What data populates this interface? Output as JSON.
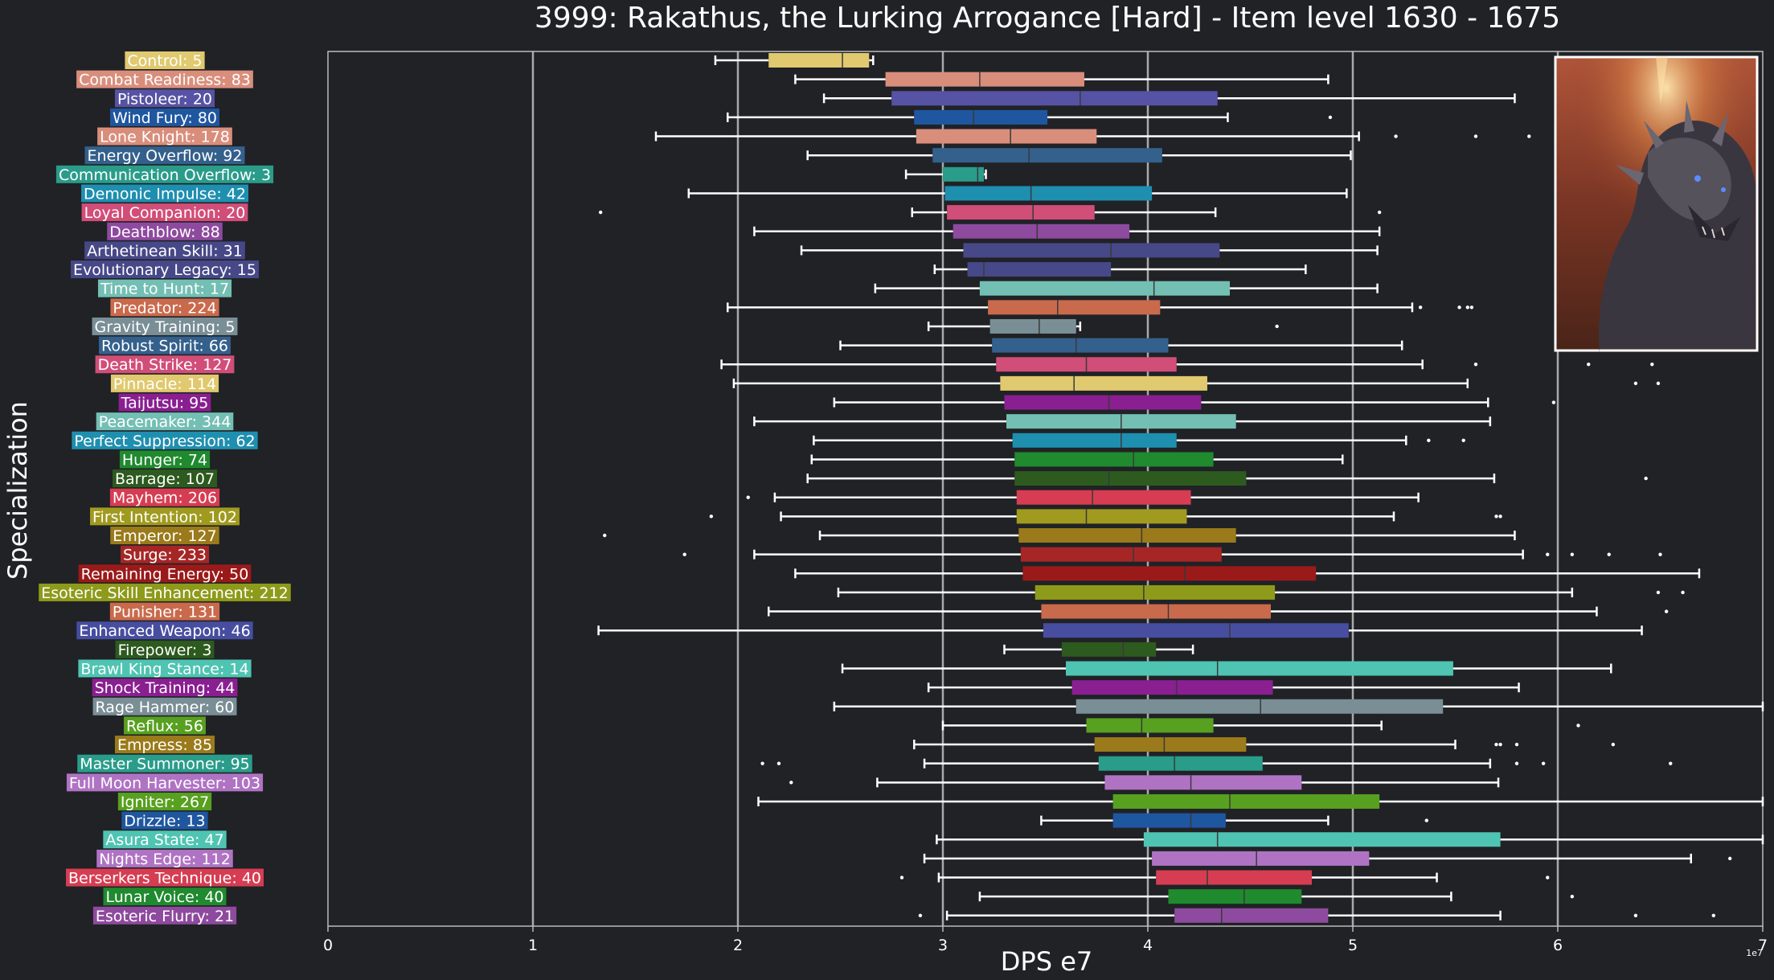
{
  "chart_data": {
    "type": "boxplot",
    "title": "3999: Rakathus, the Lurking Arrogance [Hard] - Item level 1630 - 1675",
    "xlabel": "DPS e7",
    "ylabel": "Specialization",
    "x_scale_note": "1e7",
    "xlim": [
      0,
      7
    ],
    "xticks": [
      "0",
      "1",
      "2",
      "3",
      "4",
      "5",
      "6",
      "7"
    ],
    "grid": "vertical lines at 1-6",
    "legend": "none",
    "inset_image": "dragon portrait, top-right",
    "categories": [
      {
        "label": "Control: 5",
        "color": "#e0c96e",
        "whisker_low": 1.89,
        "q1": 2.15,
        "median": 2.51,
        "q3": 2.64,
        "whisker_high": 2.66,
        "outliers": []
      },
      {
        "label": "Combat Readiness: 83",
        "color": "#d98e7c",
        "whisker_low": 2.28,
        "q1": 2.72,
        "median": 3.18,
        "q3": 3.69,
        "whisker_high": 4.88,
        "outliers": []
      },
      {
        "label": "Pistoleer: 20",
        "color": "#5652a4",
        "whisker_low": 2.42,
        "q1": 2.75,
        "median": 3.67,
        "q3": 4.34,
        "whisker_high": 5.79,
        "outliers": []
      },
      {
        "label": "Wind Fury: 80",
        "color": "#1f56a0",
        "whisker_low": 1.95,
        "q1": 2.86,
        "median": 3.15,
        "q3": 3.51,
        "whisker_high": 4.39,
        "outliers": [
          4.89
        ]
      },
      {
        "label": "Lone Knight: 178",
        "color": "#d98e7c",
        "whisker_low": 1.6,
        "q1": 2.87,
        "median": 3.33,
        "q3": 3.75,
        "whisker_high": 5.03,
        "outliers": [
          5.21,
          5.6,
          5.86
        ]
      },
      {
        "label": "Energy Overflow: 92",
        "color": "#34608c",
        "whisker_low": 2.34,
        "q1": 2.95,
        "median": 3.42,
        "q3": 4.07,
        "whisker_high": 4.99,
        "outliers": []
      },
      {
        "label": "Communication Overflow: 3",
        "color": "#2a9c8a",
        "whisker_low": 2.82,
        "q1": 3.0,
        "median": 3.17,
        "q3": 3.2,
        "whisker_high": 3.21,
        "outliers": []
      },
      {
        "label": "Demonic Impulse: 42",
        "color": "#1f8fb0",
        "whisker_low": 1.76,
        "q1": 3.01,
        "median": 3.43,
        "q3": 4.02,
        "whisker_high": 4.97,
        "outliers": []
      },
      {
        "label": "Loyal Companion: 20",
        "color": "#d14e78",
        "whisker_low": 2.85,
        "q1": 3.02,
        "median": 3.44,
        "q3": 3.74,
        "whisker_high": 4.33,
        "outliers": [
          1.33,
          5.13
        ]
      },
      {
        "label": "Deathblow: 88",
        "color": "#8e4a9e",
        "whisker_low": 2.08,
        "q1": 3.05,
        "median": 3.46,
        "q3": 3.91,
        "whisker_high": 5.13,
        "outliers": []
      },
      {
        "label": "Arthetinean Skill: 31",
        "color": "#474888",
        "whisker_low": 2.31,
        "q1": 3.1,
        "median": 3.82,
        "q3": 4.35,
        "whisker_high": 5.12,
        "outliers": []
      },
      {
        "label": "Evolutionary Legacy: 15",
        "color": "#474888",
        "whisker_low": 2.96,
        "q1": 3.12,
        "median": 3.2,
        "q3": 3.82,
        "whisker_high": 4.77,
        "outliers": []
      },
      {
        "label": "Time to Hunt: 17",
        "color": "#74bfb4",
        "whisker_low": 2.67,
        "q1": 3.18,
        "median": 4.03,
        "q3": 4.4,
        "whisker_high": 5.12,
        "outliers": []
      },
      {
        "label": "Predator: 224",
        "color": "#c96a4c",
        "whisker_low": 1.95,
        "q1": 3.22,
        "median": 3.56,
        "q3": 4.06,
        "whisker_high": 5.29,
        "outliers": [
          5.33,
          5.52,
          5.56,
          5.58
        ]
      },
      {
        "label": "Gravity Training: 5",
        "color": "#7a8e96",
        "whisker_low": 2.93,
        "q1": 3.23,
        "median": 3.47,
        "q3": 3.65,
        "whisker_high": 3.67,
        "outliers": [
          4.63
        ]
      },
      {
        "label": "Robust Spirit: 66",
        "color": "#34608c",
        "whisker_low": 2.5,
        "q1": 3.24,
        "median": 3.65,
        "q3": 4.1,
        "whisker_high": 5.24,
        "outliers": []
      },
      {
        "label": "Death Strike: 127",
        "color": "#d14e78",
        "whisker_low": 1.92,
        "q1": 3.26,
        "median": 3.7,
        "q3": 4.14,
        "whisker_high": 5.34,
        "outliers": [
          5.6,
          6.15,
          6.46
        ]
      },
      {
        "label": "Pinnacle: 114",
        "color": "#e0c96e",
        "whisker_low": 1.98,
        "q1": 3.28,
        "median": 3.64,
        "q3": 4.29,
        "whisker_high": 5.56,
        "outliers": [
          6.38,
          6.49
        ]
      },
      {
        "label": "Taijutsu: 95",
        "color": "#8a1f91",
        "whisker_low": 2.47,
        "q1": 3.3,
        "median": 3.81,
        "q3": 4.26,
        "whisker_high": 5.66,
        "outliers": [
          5.98
        ]
      },
      {
        "label": "Peacemaker: 344",
        "color": "#74bfb4",
        "whisker_low": 2.08,
        "q1": 3.31,
        "median": 3.87,
        "q3": 4.43,
        "whisker_high": 5.67,
        "outliers": []
      },
      {
        "label": "Perfect Suppression: 62",
        "color": "#1f8fb0",
        "whisker_low": 2.37,
        "q1": 3.34,
        "median": 3.87,
        "q3": 4.14,
        "whisker_high": 5.26,
        "outliers": [
          5.37,
          5.54
        ]
      },
      {
        "label": "Hunger: 74",
        "color": "#1f8a2e",
        "whisker_low": 2.36,
        "q1": 3.35,
        "median": 3.93,
        "q3": 4.32,
        "whisker_high": 4.95,
        "outliers": []
      },
      {
        "label": "Barrage: 107",
        "color": "#2d5a1e",
        "whisker_low": 2.34,
        "q1": 3.35,
        "median": 3.81,
        "q3": 4.48,
        "whisker_high": 5.69,
        "outliers": [
          6.43
        ]
      },
      {
        "label": "Mayhem: 206",
        "color": "#d63d52",
        "whisker_low": 2.18,
        "q1": 3.36,
        "median": 3.73,
        "q3": 4.21,
        "whisker_high": 5.32,
        "outliers": [
          2.05
        ]
      },
      {
        "label": "First Intention: 102",
        "color": "#a09a1f",
        "whisker_low": 2.21,
        "q1": 3.36,
        "median": 3.7,
        "q3": 4.19,
        "whisker_high": 5.2,
        "outliers": [
          1.87,
          5.7,
          5.72
        ]
      },
      {
        "label": "Emperor: 127",
        "color": "#9a7a1a",
        "whisker_low": 2.4,
        "q1": 3.37,
        "median": 3.97,
        "q3": 4.43,
        "whisker_high": 5.79,
        "outliers": [
          1.35
        ]
      },
      {
        "label": "Surge: 233",
        "color": "#a62626",
        "whisker_low": 2.08,
        "q1": 3.38,
        "median": 3.93,
        "q3": 4.36,
        "whisker_high": 5.83,
        "outliers": [
          1.74,
          5.95,
          6.07,
          6.25,
          6.5
        ]
      },
      {
        "label": "Remaining Energy: 50",
        "color": "#9a1a1a",
        "whisker_low": 2.28,
        "q1": 3.39,
        "median": 4.18,
        "q3": 4.82,
        "whisker_high": 6.69,
        "outliers": []
      },
      {
        "label": "Esoteric Skill Enhancement: 212",
        "color": "#8e9a1a",
        "whisker_low": 2.49,
        "q1": 3.45,
        "median": 3.98,
        "q3": 4.62,
        "whisker_high": 6.07,
        "outliers": [
          6.49,
          6.61
        ]
      },
      {
        "label": "Punisher: 131",
        "color": "#c96a4c",
        "whisker_low": 2.15,
        "q1": 3.48,
        "median": 4.1,
        "q3": 4.6,
        "whisker_high": 6.19,
        "outliers": [
          6.53
        ]
      },
      {
        "label": "Enhanced Weapon: 46",
        "color": "#474ea0",
        "whisker_low": 1.32,
        "q1": 3.49,
        "median": 4.4,
        "q3": 4.98,
        "whisker_high": 6.41,
        "outliers": []
      },
      {
        "label": "Firepower: 3",
        "color": "#2d5a1e",
        "whisker_low": 3.3,
        "q1": 3.58,
        "median": 3.88,
        "q3": 4.04,
        "whisker_high": 4.22,
        "outliers": []
      },
      {
        "label": "Brawl King Stance: 14",
        "color": "#4fc4b2",
        "whisker_low": 2.51,
        "q1": 3.6,
        "median": 4.34,
        "q3": 5.49,
        "whisker_high": 6.26,
        "outliers": []
      },
      {
        "label": "Shock Training: 44",
        "color": "#8a1f91",
        "whisker_low": 2.93,
        "q1": 3.63,
        "median": 4.14,
        "q3": 4.61,
        "whisker_high": 5.81,
        "outliers": []
      },
      {
        "label": "Rage Hammer: 60",
        "color": "#7a8e96",
        "whisker_low": 2.47,
        "q1": 3.65,
        "median": 4.55,
        "q3": 5.44,
        "whisker_high": 7.0,
        "outliers": []
      },
      {
        "label": "Reflux: 56",
        "color": "#58a01f",
        "whisker_low": 3.0,
        "q1": 3.7,
        "median": 3.97,
        "q3": 4.32,
        "whisker_high": 5.14,
        "outliers": [
          6.1
        ]
      },
      {
        "label": "Empress: 85",
        "color": "#9a7a1a",
        "whisker_low": 2.86,
        "q1": 3.74,
        "median": 4.08,
        "q3": 4.48,
        "whisker_high": 5.5,
        "outliers": [
          5.7,
          5.72,
          5.8,
          6.27
        ]
      },
      {
        "label": "Master Summoner: 95",
        "color": "#2a9c8a",
        "whisker_low": 2.91,
        "q1": 3.76,
        "median": 4.13,
        "q3": 4.56,
        "whisker_high": 5.67,
        "outliers": [
          2.12,
          2.2,
          5.8,
          5.93,
          6.55
        ]
      },
      {
        "label": "Full Moon Harvester: 103",
        "color": "#b073c4",
        "whisker_low": 2.68,
        "q1": 3.79,
        "median": 4.21,
        "q3": 4.75,
        "whisker_high": 5.71,
        "outliers": [
          2.26
        ]
      },
      {
        "label": "Igniter: 267",
        "color": "#58a01f",
        "whisker_low": 2.1,
        "q1": 3.83,
        "median": 4.4,
        "q3": 5.13,
        "whisker_high": 7.0,
        "outliers": []
      },
      {
        "label": "Drizzle: 13",
        "color": "#1f56a0",
        "whisker_low": 3.48,
        "q1": 3.83,
        "median": 4.21,
        "q3": 4.38,
        "whisker_high": 4.88,
        "outliers": [
          5.36
        ]
      },
      {
        "label": "Asura State: 47",
        "color": "#4fc4b2",
        "whisker_low": 2.97,
        "q1": 3.98,
        "median": 4.34,
        "q3": 5.72,
        "whisker_high": 7.0,
        "outliers": []
      },
      {
        "label": "Nights Edge: 112",
        "color": "#b073c4",
        "whisker_low": 2.91,
        "q1": 4.02,
        "median": 4.53,
        "q3": 5.08,
        "whisker_high": 6.65,
        "outliers": [
          6.84
        ]
      },
      {
        "label": "Berserkers Technique: 40",
        "color": "#d63d52",
        "whisker_low": 2.98,
        "q1": 4.04,
        "median": 4.29,
        "q3": 4.8,
        "whisker_high": 5.41,
        "outliers": [
          2.8,
          5.95
        ]
      },
      {
        "label": "Lunar Voice: 40",
        "color": "#1f8a2e",
        "whisker_low": 3.18,
        "q1": 4.1,
        "median": 4.47,
        "q3": 4.75,
        "whisker_high": 5.48,
        "outliers": [
          6.07
        ]
      },
      {
        "label": "Esoteric Flurry: 21",
        "color": "#8e4a9e",
        "whisker_low": 3.02,
        "q1": 4.13,
        "median": 4.36,
        "q3": 4.88,
        "whisker_high": 5.72,
        "outliers": [
          2.89,
          6.38,
          6.76
        ]
      }
    ]
  }
}
